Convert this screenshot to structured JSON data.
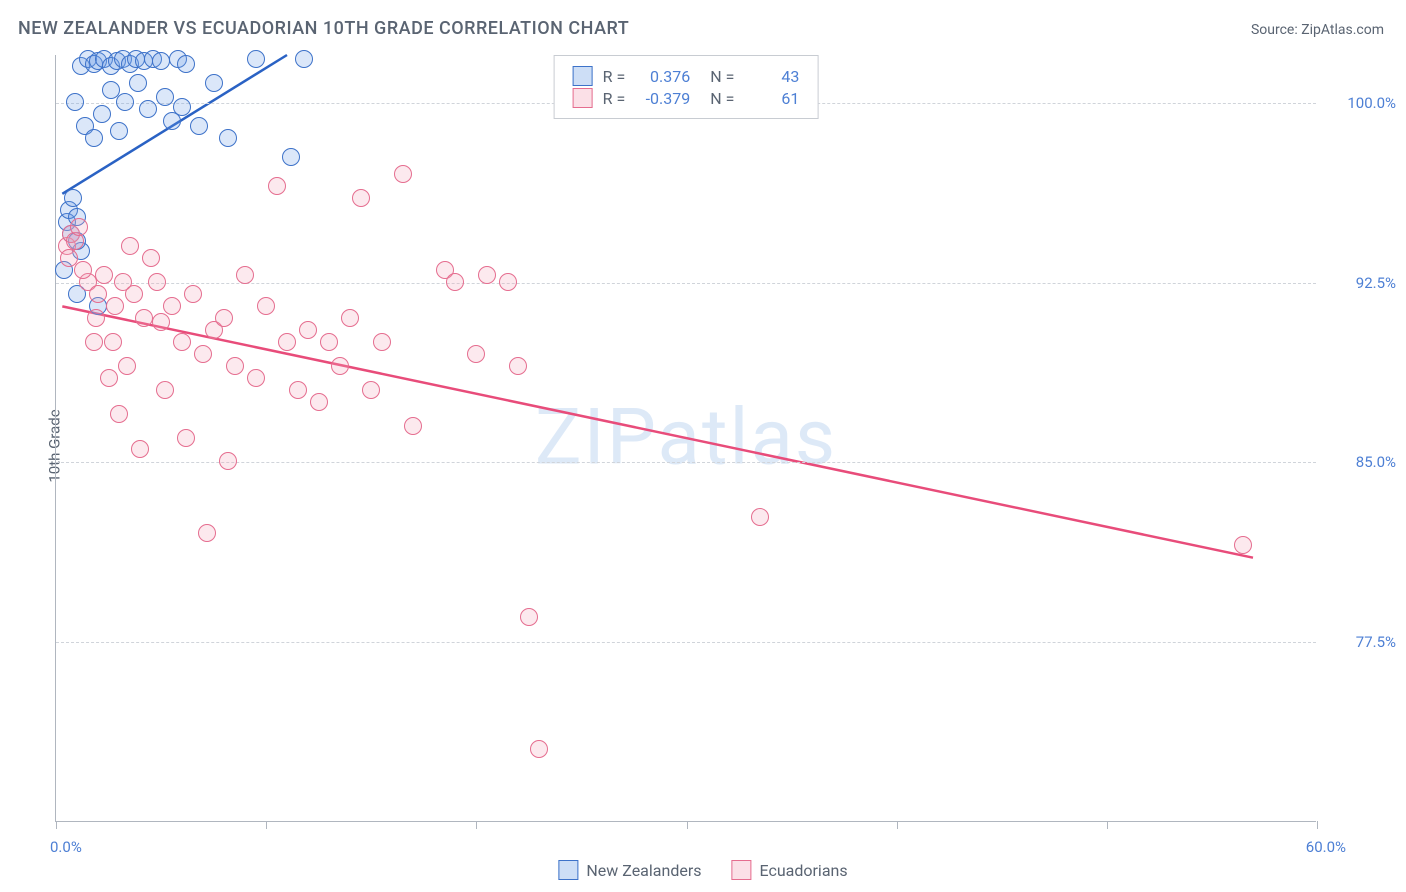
{
  "chart": {
    "type": "scatter",
    "title": "NEW ZEALANDER VS ECUADORIAN 10TH GRADE CORRELATION CHART",
    "source_label": "Source: ",
    "source_name": "ZipAtlas.com",
    "ylabel": "10th Grade",
    "watermark": "ZIPatlas",
    "background_color": "#ffffff",
    "grid_color": "#d0d4da",
    "axis_color": "#b0b6bf",
    "text_color": "#5a6472",
    "value_color": "#4d7fd4",
    "xlim": [
      0,
      60
    ],
    "ylim": [
      70,
      102
    ],
    "x_min_label": "0.0%",
    "x_max_label": "60.0%",
    "xtick_positions": [
      0,
      10,
      20,
      30,
      40,
      50,
      60
    ],
    "ygrid": [
      {
        "v": 100.0,
        "label": "100.0%"
      },
      {
        "v": 92.5,
        "label": "92.5%"
      },
      {
        "v": 85.0,
        "label": "85.0%"
      },
      {
        "v": 77.5,
        "label": "77.5%"
      }
    ],
    "marker_radius": 9,
    "marker_stroke_width": 1.5,
    "marker_fill_opacity": 0.25,
    "trend_line_width": 2.5,
    "series": [
      {
        "key": "nz",
        "label": "New Zealanders",
        "color": "#6fa0e6",
        "stroke": "#3d72c9",
        "line_color": "#2a62c4",
        "R": "0.376",
        "N": "43",
        "trend": {
          "x1": 0.3,
          "y1": 96.2,
          "x2": 11.0,
          "y2": 102.0
        },
        "points": [
          [
            0.5,
            95.0
          ],
          [
            0.6,
            95.5
          ],
          [
            0.8,
            96.0
          ],
          [
            1.0,
            95.2
          ],
          [
            0.7,
            94.5
          ],
          [
            1.2,
            93.8
          ],
          [
            0.4,
            93.0
          ],
          [
            1.0,
            92.0
          ],
          [
            2.0,
            91.5
          ],
          [
            0.9,
            100.0
          ],
          [
            1.2,
            101.5
          ],
          [
            1.5,
            101.8
          ],
          [
            1.8,
            101.6
          ],
          [
            2.0,
            101.7
          ],
          [
            2.3,
            101.8
          ],
          [
            2.6,
            101.5
          ],
          [
            2.9,
            101.7
          ],
          [
            3.2,
            101.8
          ],
          [
            3.5,
            101.6
          ],
          [
            3.8,
            101.8
          ],
          [
            4.2,
            101.7
          ],
          [
            4.6,
            101.8
          ],
          [
            5.0,
            101.7
          ],
          [
            5.8,
            101.8
          ],
          [
            6.2,
            101.6
          ],
          [
            1.4,
            99.0
          ],
          [
            1.8,
            98.5
          ],
          [
            2.2,
            99.5
          ],
          [
            2.6,
            100.5
          ],
          [
            3.0,
            98.8
          ],
          [
            3.3,
            100.0
          ],
          [
            3.9,
            100.8
          ],
          [
            4.4,
            99.7
          ],
          [
            5.2,
            100.2
          ],
          [
            5.5,
            99.2
          ],
          [
            6.0,
            99.8
          ],
          [
            6.8,
            99.0
          ],
          [
            7.5,
            100.8
          ],
          [
            8.2,
            98.5
          ],
          [
            9.5,
            101.8
          ],
          [
            11.2,
            97.7
          ],
          [
            11.8,
            101.8
          ],
          [
            1.0,
            94.2
          ]
        ]
      },
      {
        "key": "ec",
        "label": "Ecuadorians",
        "color": "#f4a6bb",
        "stroke": "#e56d8f",
        "line_color": "#e84c7a",
        "R": "-0.379",
        "N": "61",
        "trend": {
          "x1": 0.3,
          "y1": 91.5,
          "x2": 57.0,
          "y2": 81.0
        },
        "points": [
          [
            0.5,
            94.0
          ],
          [
            0.7,
            94.5
          ],
          [
            0.9,
            94.2
          ],
          [
            1.1,
            94.8
          ],
          [
            0.6,
            93.5
          ],
          [
            1.5,
            92.5
          ],
          [
            2.0,
            92.0
          ],
          [
            2.3,
            92.8
          ],
          [
            2.8,
            91.5
          ],
          [
            3.2,
            92.5
          ],
          [
            3.7,
            92.0
          ],
          [
            4.2,
            91.0
          ],
          [
            4.8,
            92.5
          ],
          [
            5.0,
            90.8
          ],
          [
            5.5,
            91.5
          ],
          [
            6.0,
            90.0
          ],
          [
            6.5,
            92.0
          ],
          [
            7.0,
            89.5
          ],
          [
            7.5,
            90.5
          ],
          [
            8.0,
            91.0
          ],
          [
            8.5,
            89.0
          ],
          [
            9.0,
            92.8
          ],
          [
            9.5,
            88.5
          ],
          [
            10.0,
            91.5
          ],
          [
            10.5,
            96.5
          ],
          [
            11.0,
            90.0
          ],
          [
            11.5,
            88.0
          ],
          [
            12.0,
            90.5
          ],
          [
            12.5,
            87.5
          ],
          [
            13.0,
            90.0
          ],
          [
            13.5,
            89.0
          ],
          [
            14.0,
            91.0
          ],
          [
            14.5,
            96.0
          ],
          [
            15.0,
            88.0
          ],
          [
            15.5,
            90.0
          ],
          [
            16.5,
            97.0
          ],
          [
            17.0,
            86.5
          ],
          [
            18.5,
            93.0
          ],
          [
            19.0,
            92.5
          ],
          [
            20.0,
            89.5
          ],
          [
            20.5,
            92.8
          ],
          [
            21.5,
            92.5
          ],
          [
            22.0,
            89.0
          ],
          [
            22.5,
            78.5
          ],
          [
            23.0,
            73.0
          ],
          [
            1.8,
            90.0
          ],
          [
            2.5,
            88.5
          ],
          [
            3.0,
            87.0
          ],
          [
            4.0,
            85.5
          ],
          [
            5.2,
            88.0
          ],
          [
            6.2,
            86.0
          ],
          [
            7.2,
            82.0
          ],
          [
            8.2,
            85.0
          ],
          [
            3.5,
            94.0
          ],
          [
            4.5,
            93.5
          ],
          [
            33.5,
            82.7
          ],
          [
            56.5,
            81.5
          ],
          [
            1.3,
            93.0
          ],
          [
            1.9,
            91.0
          ],
          [
            2.7,
            90.0
          ],
          [
            3.4,
            89.0
          ]
        ]
      }
    ],
    "legend_box": {
      "R_label": "R =",
      "N_label": "N ="
    }
  }
}
